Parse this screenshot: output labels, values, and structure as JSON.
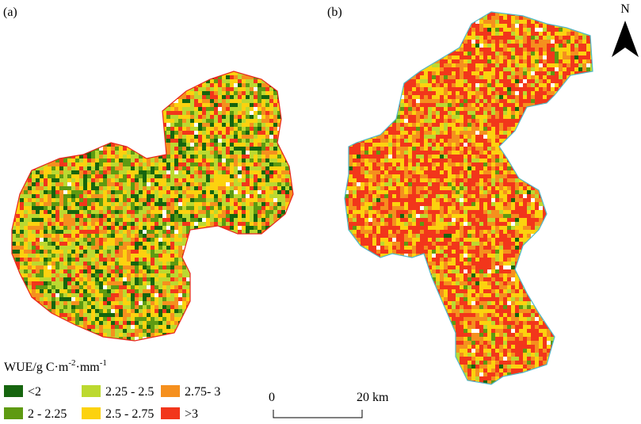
{
  "panels": [
    {
      "label": "(a)"
    },
    {
      "label": "(b)"
    }
  ],
  "north": "N",
  "legend": {
    "title_parts": [
      "WUE/g C·m",
      "-2",
      "·mm",
      "-1"
    ],
    "items": [
      {
        "label": "<2",
        "color": "#16650f"
      },
      {
        "label": "2.25 - 2.5",
        "color": "#bcd930"
      },
      {
        "label": "2.75- 3",
        "color": "#f5901e"
      },
      {
        "label": "2 - 2.25",
        "color": "#5e9a12"
      },
      {
        "label": "2.5 - 2.75",
        "color": "#fcd20f"
      },
      {
        "label": ">3",
        "color": "#f2361b"
      }
    ]
  },
  "scale_bar": {
    "start": "0",
    "end": "20 km"
  }
}
